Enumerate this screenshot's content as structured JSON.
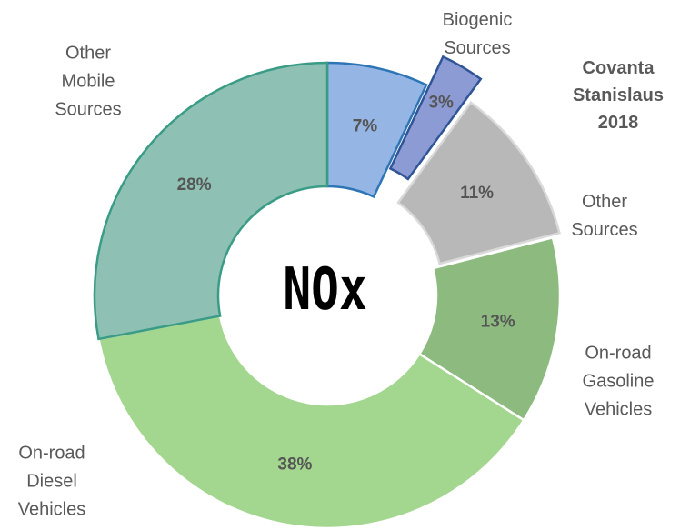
{
  "chart_data": {
    "type": "donut",
    "title": "NOx",
    "categories": [
      "Biogenic Sources",
      "Covanta Stanislaus 2018",
      "Other Sources",
      "On-road Gasoline Vehicles",
      "On-road Diesel Vehicles",
      "Other Mobile Sources"
    ],
    "values": [
      7,
      3,
      11,
      13,
      38,
      28
    ],
    "value_labels": [
      "7%",
      "3%",
      "11%",
      "13%",
      "38%",
      "28%"
    ],
    "colors": [
      "#95b6e4",
      "#8d9bd4",
      "#b8b8b8",
      "#8dbb7f",
      "#a3d68f",
      "#8ec1b3"
    ],
    "stroke_colors": [
      "#2e75b6",
      "#2f5597",
      "#d9d9d9",
      "#ffffff",
      "#ffffff",
      "#3a9c86"
    ]
  }
}
